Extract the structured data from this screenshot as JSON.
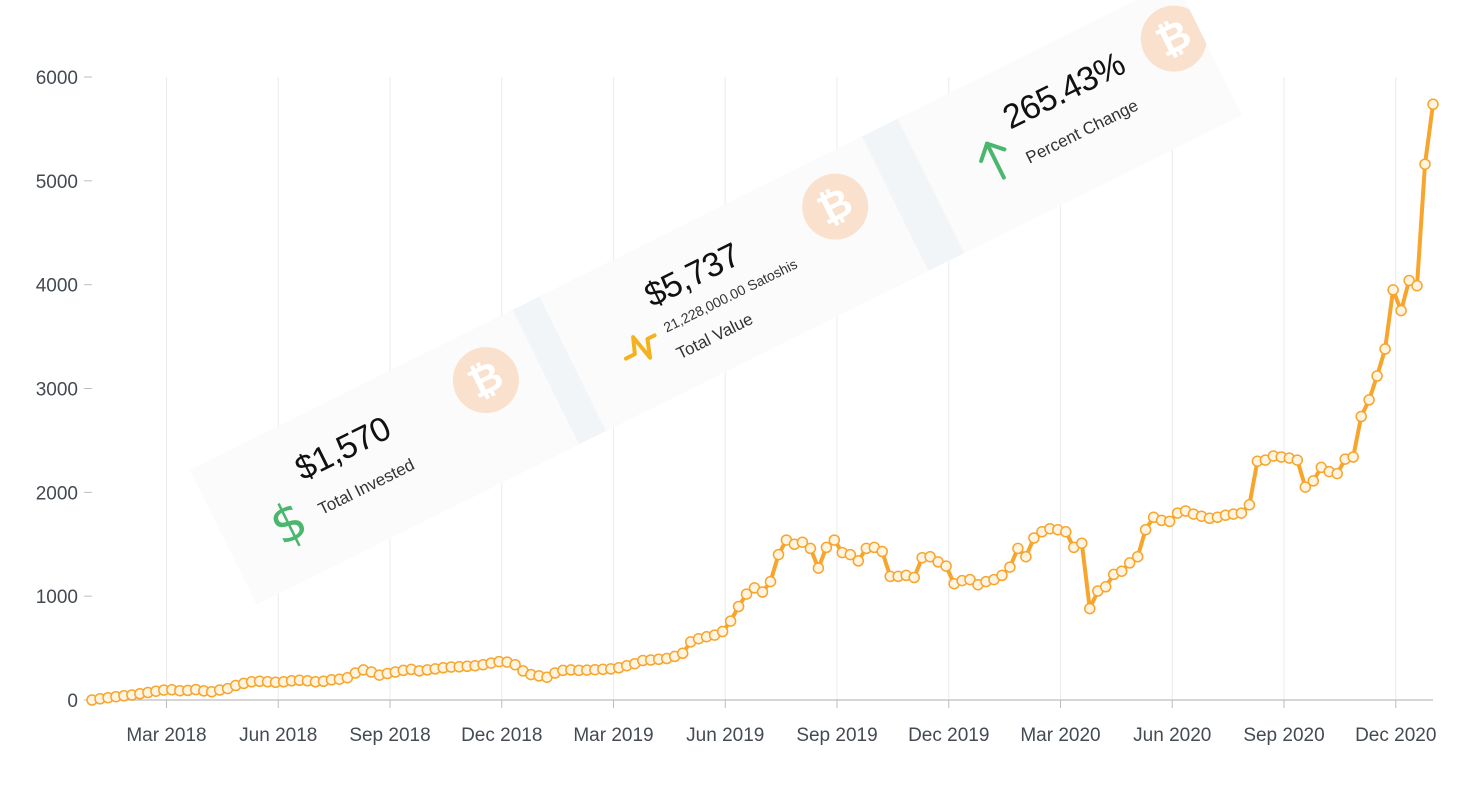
{
  "chart_data": {
    "type": "line",
    "ylim": [
      0,
      6000
    ],
    "yticks": [
      0,
      1000,
      2000,
      3000,
      4000,
      5000,
      6000
    ],
    "xticks": [
      "Mar 2018",
      "Jun 2018",
      "Sep 2018",
      "Dec 2018",
      "Mar 2019",
      "Jun 2019",
      "Sep 2019",
      "Dec 2019",
      "Mar 2020",
      "Jun 2020",
      "Sep 2020",
      "Dec 2020"
    ],
    "grid": "vertical",
    "line_color": "#f7a52c",
    "x_start": "2018-01",
    "x_end": "2021-01",
    "series": [
      {
        "values": [
          0,
          12,
          22,
          32,
          40,
          48,
          60,
          72,
          85,
          95,
          98,
          90,
          92,
          100,
          88,
          80,
          96,
          110,
          140,
          160,
          175,
          180,
          175,
          170,
          175,
          185,
          190,
          185,
          175,
          180,
          195,
          200,
          215,
          260,
          290,
          270,
          240,
          255,
          270,
          285,
          295,
          280,
          290,
          300,
          310,
          318,
          320,
          325,
          330,
          340,
          355,
          370,
          365,
          340,
          280,
          245,
          232,
          220,
          260,
          285,
          290,
          285,
          288,
          292,
          296,
          300,
          310,
          330,
          350,
          380,
          385,
          392,
          400,
          420,
          450,
          560,
          590,
          610,
          625,
          660,
          760,
          900,
          1020,
          1080,
          1040,
          1140,
          1400,
          1540,
          1500,
          1520,
          1460,
          1270,
          1470,
          1540,
          1420,
          1400,
          1340,
          1460,
          1470,
          1430,
          1190,
          1190,
          1200,
          1180,
          1370,
          1380,
          1330,
          1290,
          1120,
          1150,
          1160,
          1110,
          1140,
          1160,
          1200,
          1280,
          1460,
          1380,
          1560,
          1620,
          1650,
          1640,
          1620,
          1470,
          1510,
          880,
          1050,
          1090,
          1210,
          1240,
          1320,
          1380,
          1640,
          1760,
          1730,
          1720,
          1800,
          1820,
          1790,
          1770,
          1750,
          1760,
          1780,
          1790,
          1800,
          1880,
          2300,
          2310,
          2350,
          2340,
          2330,
          2310,
          2050,
          2110,
          2240,
          2200,
          2180,
          2320,
          2340,
          2730,
          2890,
          3120,
          3380,
          3950,
          3750,
          4040,
          3990,
          5160,
          5737
        ]
      }
    ]
  },
  "cards": [
    {
      "amount": "$1,570",
      "label": "Total Invested",
      "icon": "dollar-icon",
      "icon_color": "#4bb66e"
    },
    {
      "amount": "$5,737",
      "sub": "21,228,000.00 Satoshis",
      "label": "Total Value",
      "icon": "pulse-icon",
      "icon_color": "#f5b21f"
    },
    {
      "amount": "265.43%",
      "label": "Percent Change",
      "icon": "arrow-up-icon",
      "icon_color": "#4bb66e"
    }
  ],
  "coin_symbol": "₿",
  "coin_color": "#fae1cd",
  "dollar_glyph": "$"
}
